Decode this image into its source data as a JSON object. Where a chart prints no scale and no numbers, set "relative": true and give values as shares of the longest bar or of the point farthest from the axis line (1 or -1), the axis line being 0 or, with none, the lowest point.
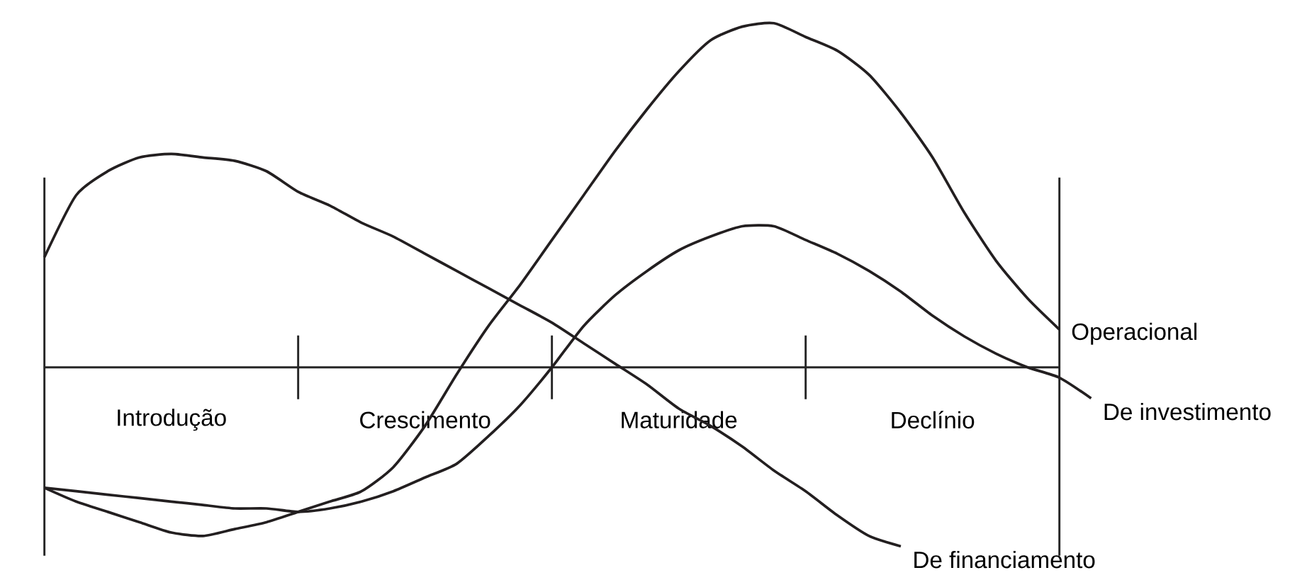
{
  "chart_data": {
    "type": "line",
    "relative": true,
    "categories": [
      null,
      null,
      null,
      null,
      "Introdução",
      null,
      null,
      null,
      null,
      null,
      null,
      null,
      "Crescimento",
      null,
      null,
      null,
      null,
      null,
      null,
      null,
      "Maturidade",
      null,
      null,
      null,
      null,
      null,
      null,
      null,
      "Declínio",
      null,
      null,
      null,
      null,
      null
    ],
    "series": [
      {
        "name": "Operacional",
        "color": "#231f20",
        "values": [
          -0.35,
          -0.39,
          -0.42,
          -0.45,
          -0.48,
          -0.49,
          -0.47,
          -0.45,
          -0.42,
          -0.39,
          -0.36,
          -0.29,
          -0.17,
          -0.02,
          0.12,
          0.24,
          0.37,
          0.5,
          0.63,
          0.75,
          0.86,
          0.95,
          0.99,
          1.0,
          0.96,
          0.92,
          0.85,
          0.74,
          0.61,
          0.45,
          0.31,
          0.2,
          0.11,
          null
        ]
      },
      {
        "name": "De investimento",
        "color": "#231f20",
        "values": [
          -0.35,
          -0.36,
          -0.37,
          -0.38,
          -0.39,
          -0.4,
          -0.41,
          -0.41,
          -0.42,
          -0.41,
          -0.39,
          -0.36,
          -0.32,
          -0.28,
          -0.2,
          -0.11,
          0,
          0.12,
          0.21,
          0.28,
          0.34,
          0.38,
          0.41,
          0.41,
          0.37,
          0.33,
          0.28,
          0.22,
          0.15,
          0.09,
          0.04,
          0.0,
          -0.03,
          -0.09
        ]
      },
      {
        "name": "De financiamento",
        "color": "#231f20",
        "values": [
          0.32,
          0.5,
          0.57,
          0.61,
          0.62,
          0.61,
          0.6,
          0.57,
          0.51,
          0.47,
          0.42,
          0.38,
          0.33,
          0.28,
          0.23,
          0.18,
          0.13,
          0.07,
          0.01,
          -0.05,
          -0.12,
          -0.17,
          -0.23,
          -0.3,
          -0.36,
          -0.43,
          -0.49,
          -0.52,
          null,
          null,
          null,
          null,
          null,
          null
        ]
      }
    ],
    "marker": "none",
    "line_style": "solid",
    "legend": false
  }
}
